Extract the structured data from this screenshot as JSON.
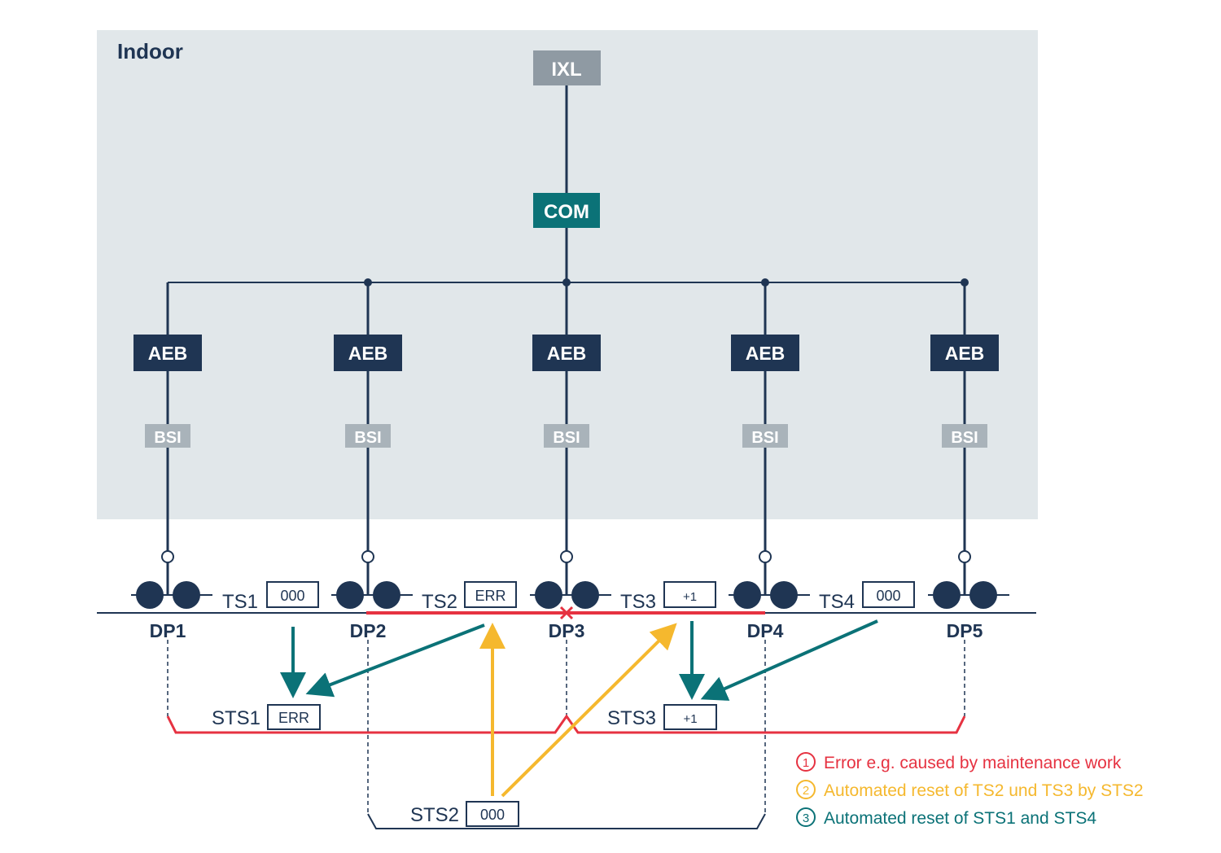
{
  "indoor_label": "Indoor",
  "ixl_label": "IXL",
  "com_label": "COM",
  "aeb_label": "AEB",
  "bsi_label": "BSI",
  "detection_points": [
    "DP1",
    "DP2",
    "DP3",
    "DP4",
    "DP5"
  ],
  "track_sections": [
    {
      "label": "TS1",
      "value": "000"
    },
    {
      "label": "TS2",
      "value": "ERR"
    },
    {
      "label": "TS3",
      "value": "+1"
    },
    {
      "label": "TS4",
      "value": "000"
    }
  ],
  "super_sections": [
    {
      "label": "STS1",
      "value": "ERR"
    },
    {
      "label": "STS2",
      "value": "000"
    },
    {
      "label": "STS3",
      "value": "+1"
    }
  ],
  "legend": [
    {
      "number": "1",
      "text": "Error e.g. caused by maintenance work",
      "color": "#e63241"
    },
    {
      "number": "2",
      "text": "Automated reset of TS2 und TS3 by STS2",
      "color": "#f5b82e"
    },
    {
      "number": "3",
      "text": "Automated reset of STS1 and STS4",
      "color": "#0b7277"
    }
  ],
  "colors": {
    "navy": "#1f3553",
    "teal": "#0b7277",
    "red": "#e63241",
    "yellow": "#f5b82e",
    "indoor_bg": "#e1e7ea",
    "ixl_gray": "#8f9aa3",
    "bsi_gray": "#a9b3ba"
  }
}
